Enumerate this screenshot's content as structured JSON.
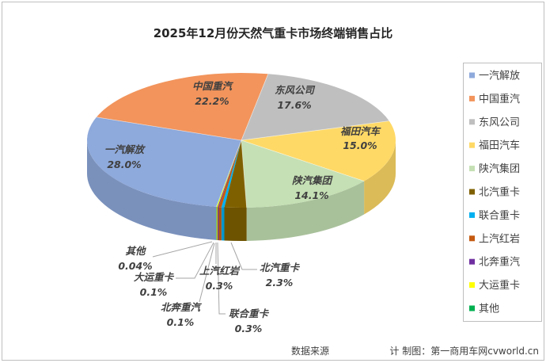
{
  "chart_data": {
    "type": "pie",
    "three_d": true,
    "title": "2025年12月份天然气重卡市场终端销售占比",
    "categories": [
      "一汽解放",
      "中国重汽",
      "东风公司",
      "福田汽车",
      "陕汽集团",
      "北汽重卡",
      "联合重卡",
      "上汽红岩",
      "北奔重汽",
      "大运重卡",
      "其他"
    ],
    "values": [
      28.0,
      22.2,
      17.6,
      15.0,
      14.1,
      2.3,
      0.3,
      0.3,
      0.1,
      0.1,
      0.04
    ],
    "data_labels": [
      "28.0%",
      "22.2%",
      "17.6%",
      "15.0%",
      "14.1%",
      "2.3%",
      "0.3%",
      "0.3%",
      "0.1%",
      "0.1%",
      "0.04%"
    ],
    "colors": [
      "#8EA9DB",
      "#F2945C",
      "#BFBFBF",
      "#FFD966",
      "#C5E0B4",
      "#7F6000",
      "#00B0F0",
      "#C55A11",
      "#7030A0",
      "#FFFF00",
      "#00B050"
    ],
    "legend": "right"
  },
  "footer": {
    "source": "数据来源",
    "credit": "计 制图：第一商用车网cvworld.cn"
  }
}
